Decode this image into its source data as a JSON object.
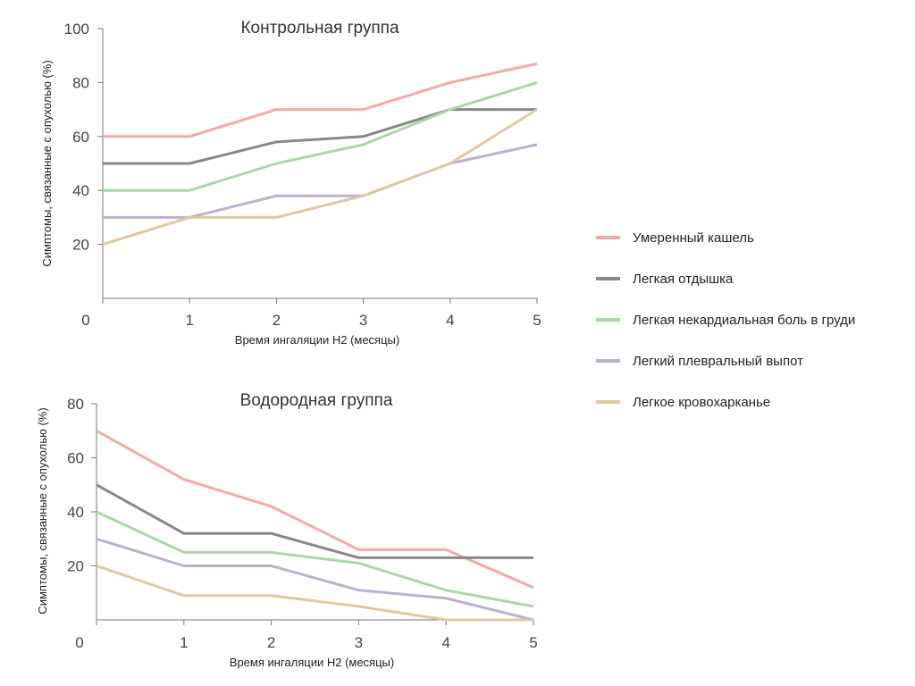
{
  "chart_data": [
    {
      "type": "line",
      "title": "Контрольная группа",
      "xlabel": "Время ингаляции H2 (месяцы)",
      "ylabel": "Симптомы, связанные с опухолью (%)",
      "x": [
        0,
        1,
        2,
        3,
        4,
        5
      ],
      "xlim": [
        0,
        5
      ],
      "ylim": [
        0,
        100
      ],
      "yticks": [
        20,
        40,
        60,
        80,
        100
      ],
      "grid": false,
      "legend": "right",
      "series": [
        {
          "name": "Умеренный кашель",
          "color": "#f4a9a8",
          "values": [
            60,
            60,
            70,
            70,
            80,
            87
          ]
        },
        {
          "name": "Легкая отдышка",
          "color": "#888888",
          "values": [
            50,
            50,
            58,
            60,
            70,
            70
          ]
        },
        {
          "name": "Легкая некардиальная боль в груди",
          "color": "#a9d8a6",
          "values": [
            40,
            40,
            50,
            57,
            70,
            80
          ]
        },
        {
          "name": "Легкий плевральный выпот",
          "color": "#bfaed0",
          "values": [
            30,
            30,
            38,
            38,
            50,
            57
          ]
        },
        {
          "name": "Легкое кровохарканье",
          "color": "#e0c7a2",
          "values": [
            20,
            30,
            30,
            38,
            50,
            70
          ]
        }
      ]
    },
    {
      "type": "line",
      "title": "Водородная группа",
      "xlabel": "Время ингаляции H2 (месяцы)",
      "ylabel": "Симптомы, связанные с опухолью (%)",
      "x": [
        0,
        1,
        2,
        3,
        4,
        5
      ],
      "xlim": [
        0,
        5
      ],
      "ylim": [
        0,
        80
      ],
      "yticks": [
        20,
        40,
        60,
        80
      ],
      "grid": false,
      "legend": "right",
      "series": [
        {
          "name": "Умеренный кашель",
          "color": "#f4a9a8",
          "values": [
            70,
            52,
            42,
            26,
            26,
            12
          ]
        },
        {
          "name": "Легкая отдышка",
          "color": "#888888",
          "values": [
            50,
            32,
            32,
            23,
            23,
            23
          ]
        },
        {
          "name": "Легкая некардиальная боль в груди",
          "color": "#a9d8a6",
          "values": [
            40,
            25,
            25,
            21,
            11,
            5
          ]
        },
        {
          "name": "Легкий плевральный выпот",
          "color": "#bfaed0",
          "values": [
            30,
            20,
            20,
            11,
            8,
            0
          ]
        },
        {
          "name": "Легкое кровохарканье",
          "color": "#e0c7a2",
          "values": [
            20,
            9,
            9,
            5,
            0,
            0
          ]
        }
      ]
    }
  ]
}
